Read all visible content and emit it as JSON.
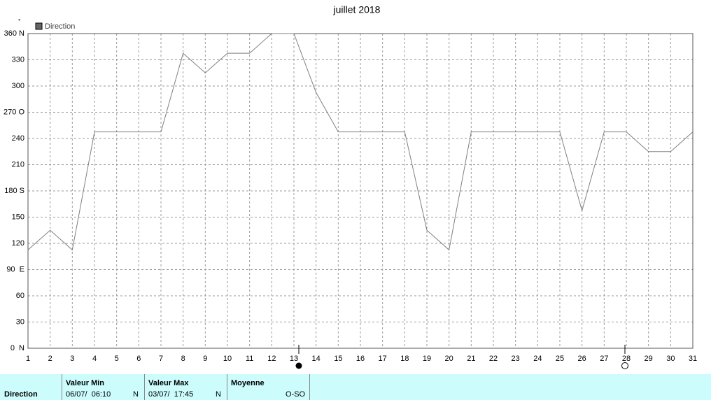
{
  "chart_data": {
    "type": "line",
    "title": "juillet 2018",
    "ylabel": "°",
    "x": [
      1,
      2,
      3,
      4,
      5,
      6,
      7,
      8,
      9,
      10,
      11,
      12,
      13,
      14,
      15,
      16,
      17,
      18,
      19,
      20,
      21,
      22,
      23,
      24,
      25,
      26,
      27,
      28,
      29,
      30,
      31
    ],
    "series": [
      {
        "name": "Direction",
        "color": "#808080",
        "values": [
          112.5,
          135,
          112.5,
          247.5,
          247.5,
          247.5,
          247.5,
          337.5,
          315,
          337.5,
          337.5,
          360,
          360,
          292.5,
          247.5,
          247.5,
          247.5,
          247.5,
          135,
          112.5,
          247.5,
          247.5,
          247.5,
          247.5,
          247.5,
          157.5,
          247.5,
          247.5,
          225,
          225,
          247.5
        ]
      }
    ],
    "xlim": [
      1,
      31
    ],
    "xticks": [
      1,
      2,
      3,
      4,
      5,
      6,
      7,
      8,
      9,
      10,
      11,
      12,
      13,
      14,
      15,
      16,
      17,
      18,
      19,
      20,
      21,
      22,
      23,
      24,
      25,
      26,
      27,
      28,
      29,
      30,
      31
    ],
    "ylim": [
      0,
      360
    ],
    "yticks": [
      {
        "value": 0,
        "label": "0  N"
      },
      30,
      60,
      {
        "value": 90,
        "label": "90  E"
      },
      120,
      150,
      {
        "value": 180,
        "label": "180 S"
      },
      210,
      240,
      {
        "value": 270,
        "label": "270 O"
      },
      300,
      330,
      {
        "value": 360,
        "label": "360 N"
      }
    ],
    "grid": true
  },
  "table": {
    "row_label": "Direction",
    "columns": [
      {
        "header": "Valeur Min",
        "value": "06/07/  06:10",
        "dir": "N"
      },
      {
        "header": "Valeur Max",
        "value": "03/07/  17:45",
        "dir": "N"
      },
      {
        "header": "Moyenne",
        "value": "O-SO"
      }
    ]
  }
}
